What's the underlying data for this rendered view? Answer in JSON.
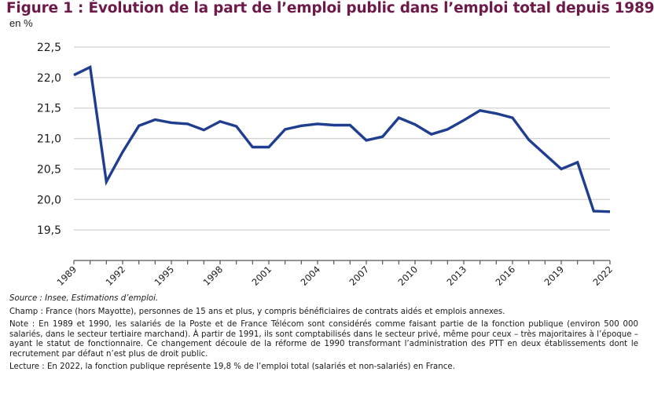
{
  "header": {
    "title": "Figure 1 : Évolution de la part de l’emploi public dans l’emploi total depuis 1989",
    "unit": "en %"
  },
  "chart_data": {
    "type": "line",
    "title": "Figure 1 : Évolution de la part de l’emploi public dans l’emploi total depuis 1989",
    "ylabel": "en %",
    "xlabel": "",
    "ylim": [
      19.0,
      22.5
    ],
    "y_ticks": [
      19.5,
      20.0,
      20.5,
      21.0,
      21.5,
      22.0,
      22.5
    ],
    "y_tick_labels": [
      "19,5",
      "20,0",
      "20,5",
      "21,0",
      "21,5",
      "22,0",
      "22,5"
    ],
    "x_tick_labels": [
      "1989",
      "1992",
      "1995",
      "1998",
      "2001",
      "2004",
      "2007",
      "2010",
      "2013",
      "2016",
      "2019",
      "2022"
    ],
    "grid": true,
    "legend": "none",
    "line_color": "#1f3e8f",
    "x": [
      1989,
      1990,
      1991,
      1992,
      1993,
      1994,
      1995,
      1996,
      1997,
      1998,
      1999,
      2000,
      2001,
      2002,
      2003,
      2004,
      2005,
      2006,
      2007,
      2008,
      2009,
      2010,
      2011,
      2012,
      2013,
      2014,
      2015,
      2016,
      2017,
      2018,
      2019,
      2020,
      2021,
      2022
    ],
    "series": [
      {
        "name": "Part de l’emploi public",
        "values": [
          22.04,
          22.17,
          20.29,
          20.78,
          21.21,
          21.31,
          21.26,
          21.24,
          21.14,
          21.28,
          21.2,
          20.86,
          20.86,
          21.15,
          21.21,
          21.24,
          21.22,
          21.22,
          20.97,
          21.03,
          21.34,
          21.23,
          21.07,
          21.15,
          21.3,
          21.46,
          21.41,
          21.34,
          20.98,
          20.74,
          20.5,
          20.61,
          19.81,
          19.8
        ]
      }
    ]
  },
  "notes": {
    "source": "Source : Insee, Estimations d’emploi.",
    "champ": "Champ : France (hors Mayotte), personnes de 15 ans et plus, y compris bénéficiaires de contrats aidés et emplois annexes.",
    "note": "Note : En 1989 et 1990, les salariés de la Poste et de France Télécom sont considérés comme faisant partie de la fonction publique (environ 500 000 salariés, dans le secteur tertiaire marchand). À partir de 1991, ils sont comptabilisés dans le secteur privé, même pour ceux – très majoritaires à l’époque – ayant le statut de fonctionnaire. Ce changement découle de la réforme de 1990 transformant l’administration des PTT en deux établissements dont le recrutement par défaut n’est plus de droit public.",
    "lecture": "Lecture : En 2022, la fonction publique représente 19,8 % de l’emploi total (salariés et non-salariés) en France."
  }
}
